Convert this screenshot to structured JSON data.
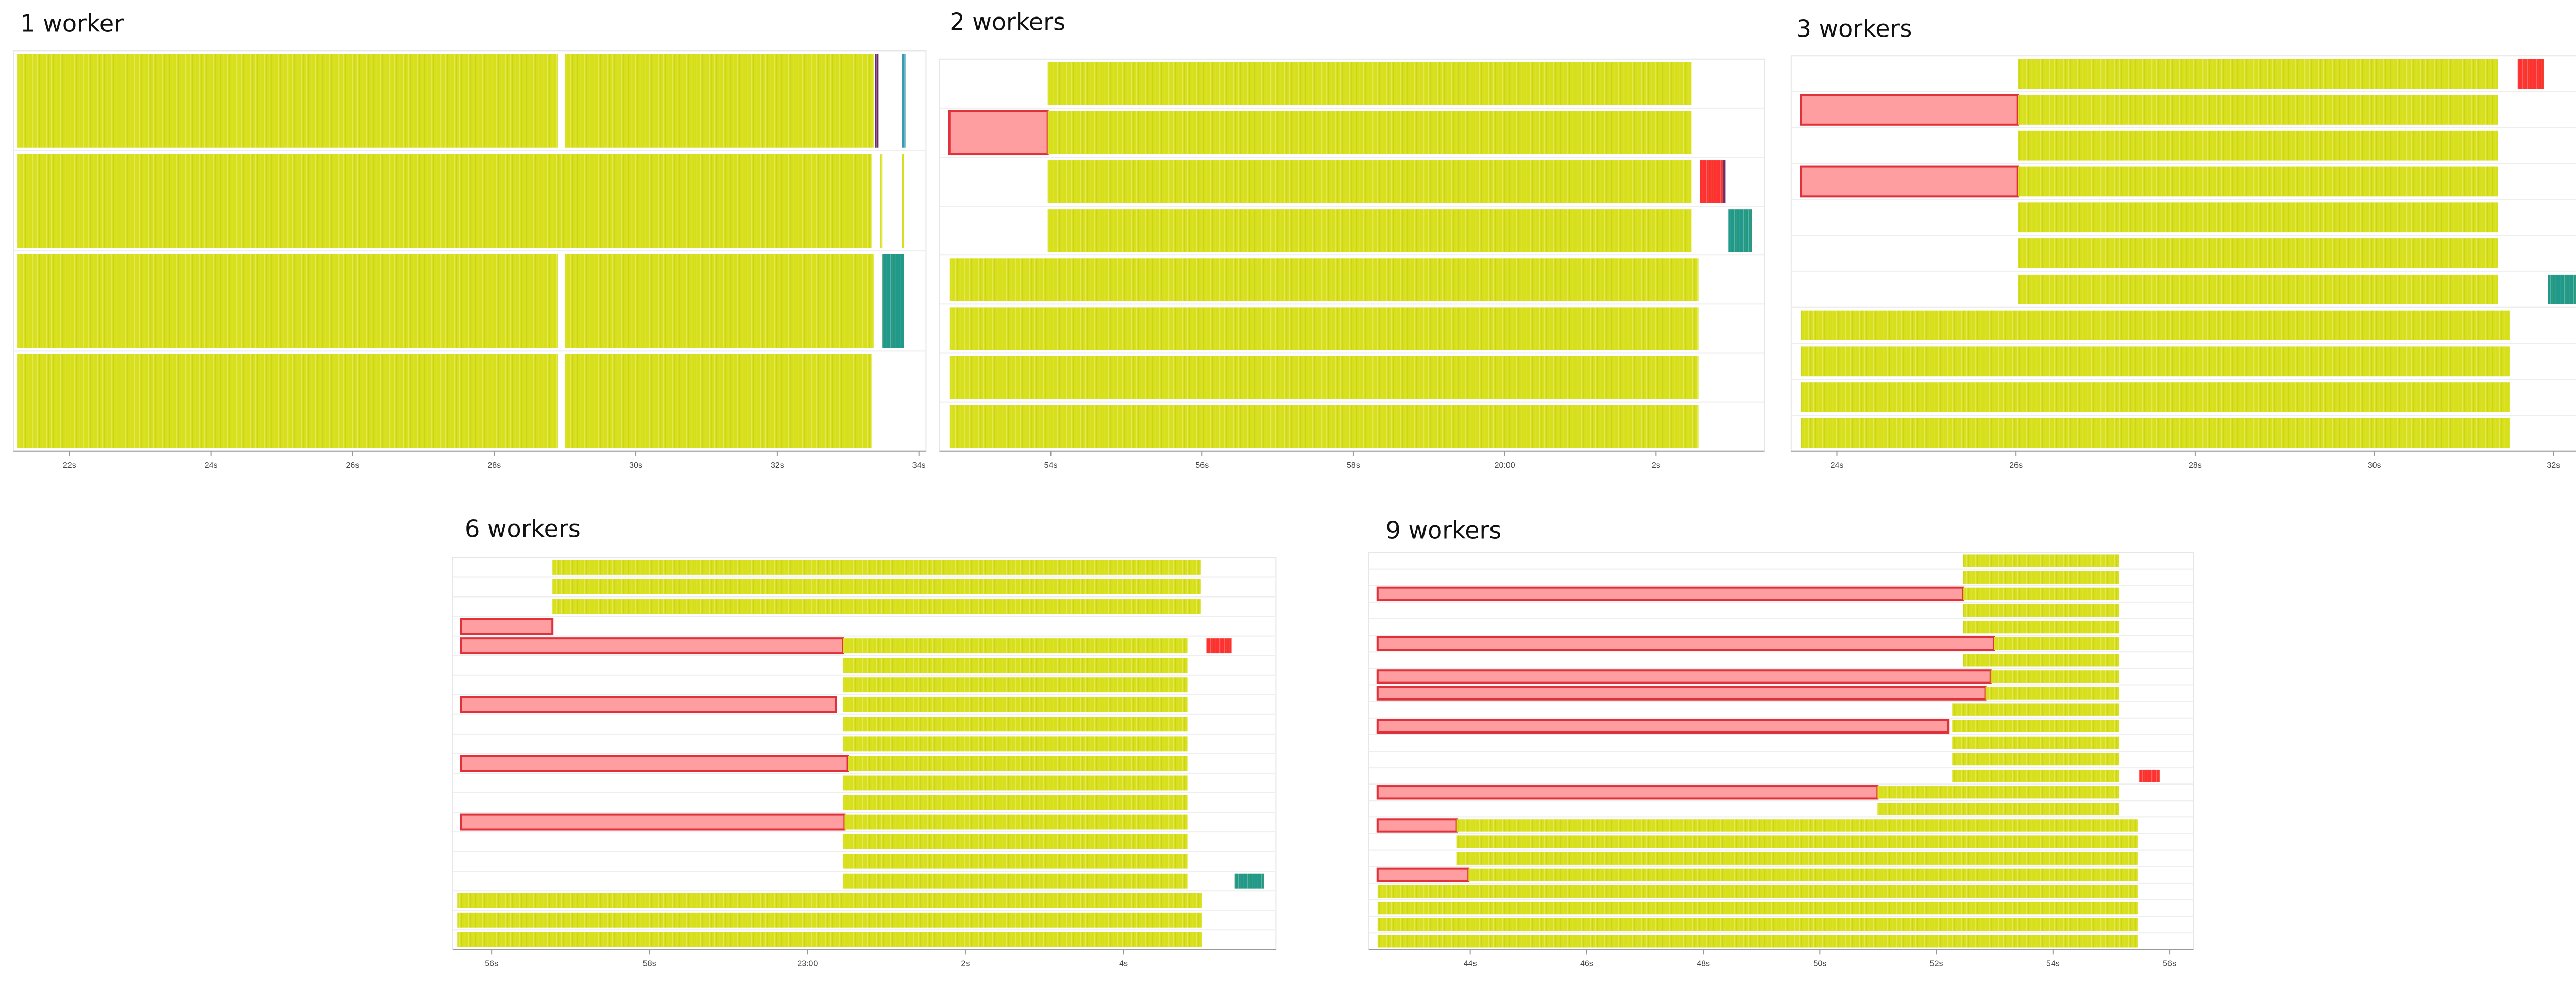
{
  "chart_data": [
    {
      "type": "timeline",
      "title": "1 worker",
      "xlim": [
        21.21,
        34.1
      ],
      "xticks": [
        {
          "value": 22,
          "label": "22s"
        },
        {
          "value": 24,
          "label": "24s"
        },
        {
          "value": 26,
          "label": "26s"
        },
        {
          "value": 28,
          "label": "28s"
        },
        {
          "value": 30,
          "label": "30s"
        },
        {
          "value": 32,
          "label": "32s"
        },
        {
          "value": 34,
          "label": "34s"
        }
      ],
      "lanes": [
        [
          {
            "start": 21.26,
            "end": 28.9,
            "color": "#d8e01e"
          },
          {
            "start": 29.0,
            "end": 33.36,
            "color": "#d8e01e"
          },
          {
            "start": 33.38,
            "end": 33.43,
            "color": "#6b2c6e"
          },
          {
            "start": 33.76,
            "end": 33.81,
            "color": "#3a9ab0"
          }
        ],
        [
          {
            "start": 21.26,
            "end": 33.33,
            "color": "#d8e01e"
          },
          {
            "start": 33.45,
            "end": 33.48,
            "color": "#d8e01e"
          },
          {
            "start": 33.76,
            "end": 33.79,
            "color": "#d8e01e"
          }
        ],
        [
          {
            "start": 21.26,
            "end": 28.9,
            "color": "#d8e01e"
          },
          {
            "start": 29.0,
            "end": 33.36,
            "color": "#d8e01e"
          },
          {
            "start": 33.48,
            "end": 33.79,
            "color": "#21998a"
          }
        ],
        [
          {
            "start": 21.26,
            "end": 28.9,
            "color": "#d8e01e"
          },
          {
            "start": 29.0,
            "end": 33.33,
            "color": "#d8e01e"
          }
        ]
      ]
    },
    {
      "type": "timeline",
      "title": "2 workers",
      "xlim": [
        52.53,
        63.43
      ],
      "xticks": [
        {
          "value": 54,
          "label": "54s"
        },
        {
          "value": 56,
          "label": "56s"
        },
        {
          "value": 58,
          "label": "58s"
        },
        {
          "value": 60,
          "label": "20:00"
        },
        {
          "value": 62,
          "label": "2s"
        }
      ],
      "lanes": [
        [
          {
            "start": 53.96,
            "end": 62.47,
            "color": "#d8e01e"
          }
        ],
        [
          {
            "start": 52.66,
            "end": 53.96,
            "color": "#ff9ea0",
            "stroke": "#e0303a"
          },
          {
            "start": 53.96,
            "end": 62.47,
            "color": "#d8e01e"
          }
        ],
        [
          {
            "start": 53.96,
            "end": 62.47,
            "color": "#d8e01e"
          },
          {
            "start": 62.58,
            "end": 62.89,
            "color": "#ff3030"
          },
          {
            "start": 62.89,
            "end": 62.92,
            "color": "#6b2c6e"
          }
        ],
        [
          {
            "start": 53.96,
            "end": 62.47,
            "color": "#d8e01e"
          },
          {
            "start": 62.96,
            "end": 63.27,
            "color": "#21998a"
          }
        ],
        [
          {
            "start": 52.66,
            "end": 62.56,
            "color": "#d8e01e"
          }
        ],
        [
          {
            "start": 52.66,
            "end": 62.56,
            "color": "#d8e01e"
          }
        ],
        [
          {
            "start": 52.66,
            "end": 62.56,
            "color": "#d8e01e"
          }
        ],
        [
          {
            "start": 52.66,
            "end": 62.56,
            "color": "#d8e01e"
          }
        ]
      ]
    },
    {
      "type": "timeline",
      "title": "3 workers",
      "xlim": [
        23.49,
        32.64
      ],
      "xticks": [
        {
          "value": 24,
          "label": "24s"
        },
        {
          "value": 26,
          "label": "26s"
        },
        {
          "value": 28,
          "label": "28s"
        },
        {
          "value": 30,
          "label": "30s"
        },
        {
          "value": 32,
          "label": "32s"
        }
      ],
      "lanes": [
        [
          {
            "start": 26.02,
            "end": 31.38,
            "color": "#d8e01e"
          },
          {
            "start": 31.6,
            "end": 31.89,
            "color": "#ff3030"
          }
        ],
        [
          {
            "start": 23.6,
            "end": 26.02,
            "color": "#ff9ea0",
            "stroke": "#e0303a"
          },
          {
            "start": 26.02,
            "end": 31.38,
            "color": "#d8e01e"
          }
        ],
        [
          {
            "start": 26.02,
            "end": 31.38,
            "color": "#d8e01e"
          }
        ],
        [
          {
            "start": 23.6,
            "end": 26.02,
            "color": "#ff9ea0",
            "stroke": "#e0303a"
          },
          {
            "start": 26.02,
            "end": 31.38,
            "color": "#d8e01e"
          }
        ],
        [
          {
            "start": 26.02,
            "end": 31.38,
            "color": "#d8e01e"
          }
        ],
        [
          {
            "start": 26.02,
            "end": 31.38,
            "color": "#d8e01e"
          }
        ],
        [
          {
            "start": 26.02,
            "end": 31.38,
            "color": "#d8e01e"
          },
          {
            "start": 31.94,
            "end": 32.51,
            "color": "#21998a"
          }
        ],
        [
          {
            "start": 23.6,
            "end": 31.51,
            "color": "#d8e01e"
          }
        ],
        [
          {
            "start": 23.6,
            "end": 31.51,
            "color": "#d8e01e"
          }
        ],
        [
          {
            "start": 23.6,
            "end": 31.51,
            "color": "#d8e01e"
          }
        ],
        [
          {
            "start": 23.6,
            "end": 31.51,
            "color": "#d8e01e"
          }
        ]
      ]
    },
    {
      "type": "timeline",
      "title": "6 workers",
      "xlim": [
        55.51,
        65.93
      ],
      "xticks": [
        {
          "value": 56,
          "label": "56s"
        },
        {
          "value": 58,
          "label": "58s"
        },
        {
          "value": 60,
          "label": "23:00"
        },
        {
          "value": 62,
          "label": "2s"
        },
        {
          "value": 64,
          "label": "4s"
        }
      ],
      "lanes": [
        [
          {
            "start": 56.77,
            "end": 64.98,
            "color": "#d8e01e"
          }
        ],
        [
          {
            "start": 56.77,
            "end": 64.98,
            "color": "#d8e01e"
          }
        ],
        [
          {
            "start": 56.77,
            "end": 64.98,
            "color": "#d8e01e"
          }
        ],
        [
          {
            "start": 55.61,
            "end": 56.77,
            "color": "#ff9ea0",
            "stroke": "#e0303a"
          }
        ],
        [
          {
            "start": 55.61,
            "end": 60.45,
            "color": "#ff9ea0",
            "stroke": "#e0303a"
          },
          {
            "start": 60.45,
            "end": 64.81,
            "color": "#d8e01e"
          },
          {
            "start": 65.05,
            "end": 65.37,
            "color": "#ff3030"
          }
        ],
        [
          {
            "start": 60.45,
            "end": 64.81,
            "color": "#d8e01e"
          }
        ],
        [
          {
            "start": 60.45,
            "end": 64.81,
            "color": "#d8e01e"
          }
        ],
        [
          {
            "start": 55.61,
            "end": 60.36,
            "color": "#ff9ea0",
            "stroke": "#e0303a"
          },
          {
            "start": 60.45,
            "end": 64.81,
            "color": "#d8e01e"
          }
        ],
        [
          {
            "start": 60.45,
            "end": 64.81,
            "color": "#d8e01e"
          }
        ],
        [
          {
            "start": 60.45,
            "end": 64.81,
            "color": "#d8e01e"
          }
        ],
        [
          {
            "start": 55.61,
            "end": 60.51,
            "color": "#ff9ea0",
            "stroke": "#e0303a"
          },
          {
            "start": 60.51,
            "end": 64.81,
            "color": "#d8e01e"
          }
        ],
        [
          {
            "start": 60.45,
            "end": 64.81,
            "color": "#d8e01e"
          }
        ],
        [
          {
            "start": 60.45,
            "end": 64.81,
            "color": "#d8e01e"
          }
        ],
        [
          {
            "start": 55.61,
            "end": 60.47,
            "color": "#ff9ea0",
            "stroke": "#e0303a"
          },
          {
            "start": 60.47,
            "end": 64.81,
            "color": "#d8e01e"
          }
        ],
        [
          {
            "start": 60.45,
            "end": 64.81,
            "color": "#d8e01e"
          }
        ],
        [
          {
            "start": 60.45,
            "end": 64.81,
            "color": "#d8e01e"
          }
        ],
        [
          {
            "start": 60.45,
            "end": 64.81,
            "color": "#d8e01e"
          },
          {
            "start": 65.41,
            "end": 65.78,
            "color": "#21998a"
          }
        ],
        [
          {
            "start": 55.57,
            "end": 65.0,
            "color": "#d8e01e"
          }
        ],
        [
          {
            "start": 55.57,
            "end": 65.0,
            "color": "#d8e01e"
          }
        ],
        [
          {
            "start": 55.57,
            "end": 65.0,
            "color": "#d8e01e"
          }
        ]
      ]
    },
    {
      "type": "timeline",
      "title": "9 workers",
      "xlim": [
        42.26,
        56.41
      ],
      "xticks": [
        {
          "value": 44,
          "label": "44s"
        },
        {
          "value": 46,
          "label": "46s"
        },
        {
          "value": 48,
          "label": "48s"
        },
        {
          "value": 50,
          "label": "50s"
        },
        {
          "value": 52,
          "label": "52s"
        },
        {
          "value": 54,
          "label": "54s"
        },
        {
          "value": 56,
          "label": "56s"
        }
      ],
      "lanes": [
        [
          {
            "start": 52.46,
            "end": 55.13,
            "color": "#d8e01e"
          }
        ],
        [
          {
            "start": 52.46,
            "end": 55.13,
            "color": "#d8e01e"
          }
        ],
        [
          {
            "start": 42.41,
            "end": 52.46,
            "color": "#ff9ea0",
            "stroke": "#e0303a"
          },
          {
            "start": 52.46,
            "end": 55.13,
            "color": "#d8e01e"
          }
        ],
        [
          {
            "start": 52.46,
            "end": 55.13,
            "color": "#d8e01e"
          }
        ],
        [
          {
            "start": 52.46,
            "end": 55.13,
            "color": "#d8e01e"
          }
        ],
        [
          {
            "start": 42.41,
            "end": 52.99,
            "color": "#ff9ea0",
            "stroke": "#e0303a"
          },
          {
            "start": 52.99,
            "end": 55.13,
            "color": "#d8e01e"
          }
        ],
        [
          {
            "start": 52.46,
            "end": 55.13,
            "color": "#d8e01e"
          }
        ],
        [
          {
            "start": 42.41,
            "end": 52.93,
            "color": "#ff9ea0",
            "stroke": "#e0303a"
          },
          {
            "start": 52.93,
            "end": 55.13,
            "color": "#d8e01e"
          }
        ],
        [
          {
            "start": 42.41,
            "end": 52.84,
            "color": "#ff9ea0",
            "stroke": "#e0303a"
          },
          {
            "start": 52.84,
            "end": 55.13,
            "color": "#d8e01e"
          }
        ],
        [
          {
            "start": 52.26,
            "end": 55.13,
            "color": "#d8e01e"
          }
        ],
        [
          {
            "start": 42.41,
            "end": 52.2,
            "color": "#ff9ea0",
            "stroke": "#e0303a"
          },
          {
            "start": 52.26,
            "end": 55.13,
            "color": "#d8e01e"
          }
        ],
        [
          {
            "start": 52.26,
            "end": 55.13,
            "color": "#d8e01e"
          }
        ],
        [
          {
            "start": 52.26,
            "end": 55.13,
            "color": "#d8e01e"
          }
        ],
        [
          {
            "start": 52.26,
            "end": 55.13,
            "color": "#d8e01e"
          },
          {
            "start": 55.48,
            "end": 55.83,
            "color": "#ff3030"
          }
        ],
        [
          {
            "start": 42.41,
            "end": 50.99,
            "color": "#ff9ea0",
            "stroke": "#e0303a"
          },
          {
            "start": 50.99,
            "end": 55.13,
            "color": "#d8e01e"
          }
        ],
        [
          {
            "start": 50.99,
            "end": 55.13,
            "color": "#d8e01e"
          }
        ],
        [
          {
            "start": 42.41,
            "end": 43.77,
            "color": "#ff9ea0",
            "stroke": "#e0303a"
          },
          {
            "start": 43.77,
            "end": 55.45,
            "color": "#d8e01e"
          }
        ],
        [
          {
            "start": 43.77,
            "end": 55.45,
            "color": "#d8e01e"
          }
        ],
        [
          {
            "start": 43.77,
            "end": 55.45,
            "color": "#d8e01e"
          }
        ],
        [
          {
            "start": 42.41,
            "end": 43.97,
            "color": "#ff9ea0",
            "stroke": "#e0303a"
          },
          {
            "start": 43.97,
            "end": 55.45,
            "color": "#d8e01e"
          }
        ],
        [
          {
            "start": 42.41,
            "end": 55.45,
            "color": "#d8e01e"
          }
        ],
        [
          {
            "start": 42.41,
            "end": 55.45,
            "color": "#d8e01e"
          }
        ],
        [
          {
            "start": 42.41,
            "end": 55.45,
            "color": "#d8e01e"
          }
        ],
        [
          {
            "start": 42.41,
            "end": 55.45,
            "color": "#d8e01e"
          }
        ]
      ]
    }
  ]
}
